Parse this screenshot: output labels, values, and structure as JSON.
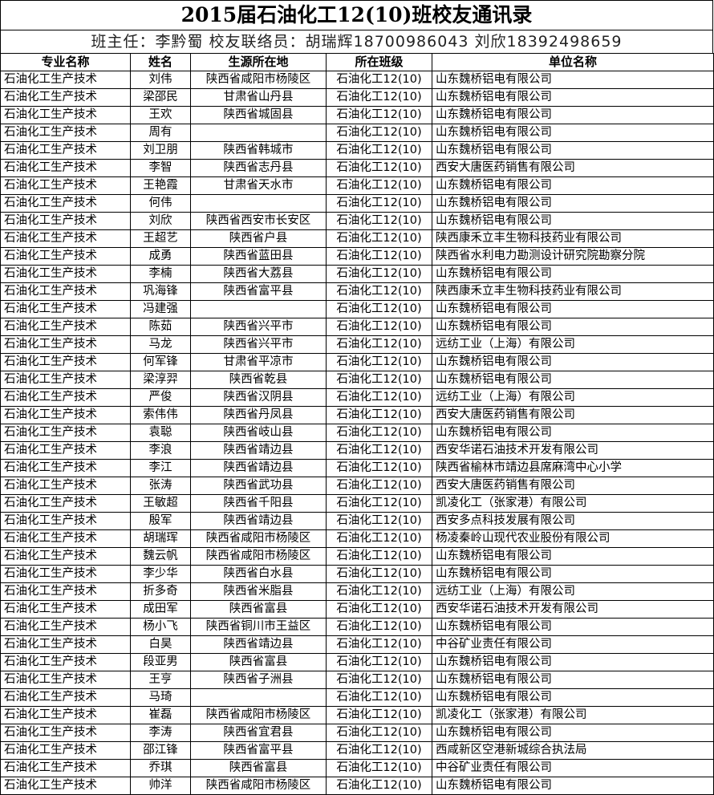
{
  "title": "2015届石油化工12(10)班校友通讯录",
  "subtitle": "班主任：李黔蜀 校友联络员：胡瑞辉18700986043 刘欣18392498659",
  "columns": [
    "专业名称",
    "姓名",
    "生源所在地",
    "所在班级",
    "单位名称"
  ],
  "rows": [
    [
      "石油化工生产技术",
      "刘伟",
      "陕西省咸阳市杨陵区",
      "石油化工12(10)",
      "山东魏桥铝电有限公司"
    ],
    [
      "石油化工生产技术",
      "梁邵民",
      "甘肃省山丹县",
      "石油化工12(10)",
      "山东魏桥铝电有限公司"
    ],
    [
      "石油化工生产技术",
      "王欢",
      "陕西省城固县",
      "石油化工12(10)",
      "山东魏桥铝电有限公司"
    ],
    [
      "石油化工生产技术",
      "周有",
      "",
      "石油化工12(10)",
      "山东魏桥铝电有限公司"
    ],
    [
      "石油化工生产技术",
      "刘卫朋",
      "陕西省韩城市",
      "石油化工12(10)",
      "山东魏桥铝电有限公司"
    ],
    [
      "石油化工生产技术",
      "李智",
      "陕西省志丹县",
      "石油化工12(10)",
      "西安大唐医药销售有限公司"
    ],
    [
      "石油化工生产技术",
      "王艳霞",
      "甘肃省天水市",
      "石油化工12(10)",
      "山东魏桥铝电有限公司"
    ],
    [
      "石油化工生产技术",
      "何伟",
      "",
      "石油化工12(10)",
      "山东魏桥铝电有限公司"
    ],
    [
      "石油化工生产技术",
      "刘欣",
      "陕西省西安市长安区",
      "石油化工12(10)",
      "山东魏桥铝电有限公司"
    ],
    [
      "石油化工生产技术",
      "王超艺",
      "陕西省户县",
      "石油化工12(10)",
      "陕西康禾立丰生物科技药业有限公司"
    ],
    [
      "石油化工生产技术",
      "成勇",
      "陕西省蓝田县",
      "石油化工12(10)",
      "陕西省水利电力勘测设计研究院勘察分院"
    ],
    [
      "石油化工生产技术",
      "李楠",
      "陕西省大荔县",
      "石油化工12(10)",
      "山东魏桥铝电有限公司"
    ],
    [
      "石油化工生产技术",
      "巩海锋",
      "陕西省富平县",
      "石油化工12(10)",
      "陕西康禾立丰生物科技药业有限公司"
    ],
    [
      "石油化工生产技术",
      "冯建强",
      "",
      "石油化工12(10)",
      "山东魏桥铝电有限公司"
    ],
    [
      "石油化工生产技术",
      "陈茹",
      "陕西省兴平市",
      "石油化工12(10)",
      "山东魏桥铝电有限公司"
    ],
    [
      "石油化工生产技术",
      "马龙",
      "陕西省兴平市",
      "石油化工12(10)",
      "远纺工业（上海）有限公司"
    ],
    [
      "石油化工生产技术",
      "何军锋",
      "甘肃省平凉市",
      "石油化工12(10)",
      "山东魏桥铝电有限公司"
    ],
    [
      "石油化工生产技术",
      "梁淳羿",
      "陕西省乾县",
      "石油化工12(10)",
      "山东魏桥铝电有限公司"
    ],
    [
      "石油化工生产技术",
      "严俊",
      "陕西省汉阴县",
      "石油化工12(10)",
      "远纺工业（上海）有限公司"
    ],
    [
      "石油化工生产技术",
      "索伟伟",
      "陕西省丹凤县",
      "石油化工12(10)",
      "西安大唐医药销售有限公司"
    ],
    [
      "石油化工生产技术",
      "袁聪",
      "陕西省岐山县",
      "石油化工12(10)",
      "山东魏桥铝电有限公司"
    ],
    [
      "石油化工生产技术",
      "李浪",
      "陕西省靖边县",
      "石油化工12(10)",
      "西安华诺石油技术开发有限公司"
    ],
    [
      "石油化工生产技术",
      "李江",
      "陕西省靖边县",
      "石油化工12(10)",
      "陕西省榆林市靖边县席麻湾中心小学"
    ],
    [
      "石油化工生产技术",
      "张涛",
      "陕西省武功县",
      "石油化工12(10)",
      "西安大唐医药销售有限公司"
    ],
    [
      "石油化工生产技术",
      "王敏超",
      "陕西省千阳县",
      "石油化工12(10)",
      "凯凌化工（张家港）有限公司"
    ],
    [
      "石油化工生产技术",
      "殷军",
      "陕西省靖边县",
      "石油化工12(10)",
      "西安多点科技发展有限公司"
    ],
    [
      "石油化工生产技术",
      "胡瑞珲",
      "陕西省咸阳市杨陵区",
      "石油化工12(10)",
      "杨凌秦岭山现代农业股份有限公司"
    ],
    [
      "石油化工生产技术",
      "魏云帆",
      "陕西省咸阳市杨陵区",
      "石油化工12(10)",
      "山东魏桥铝电有限公司"
    ],
    [
      "石油化工生产技术",
      "李少华",
      "陕西省白水县",
      "石油化工12(10)",
      "山东魏桥铝电有限公司"
    ],
    [
      "石油化工生产技术",
      "折多奇",
      "陕西省米脂县",
      "石油化工12(10)",
      "远纺工业（上海）有限公司"
    ],
    [
      "石油化工生产技术",
      "成田军",
      "陕西省富县",
      "石油化工12(10)",
      "西安华诺石油技术开发有限公司"
    ],
    [
      "石油化工生产技术",
      "杨小飞",
      "陕西省铜川市王益区",
      "石油化工12(10)",
      "山东魏桥铝电有限公司"
    ],
    [
      "石油化工生产技术",
      "白昊",
      "陕西省靖边县",
      "石油化工12(10)",
      "中谷矿业责任有限公司"
    ],
    [
      "石油化工生产技术",
      "段亚男",
      "陕西省富县",
      "石油化工12(10)",
      "山东魏桥铝电有限公司"
    ],
    [
      "石油化工生产技术",
      "王亨",
      "陕西省子洲县",
      "石油化工12(10)",
      "山东魏桥铝电有限公司"
    ],
    [
      "石油化工生产技术",
      "马琦",
      "",
      "石油化工12(10)",
      "山东魏桥铝电有限公司"
    ],
    [
      "石油化工生产技术",
      "崔磊",
      "陕西省咸阳市杨陵区",
      "石油化工12(10)",
      "凯凌化工（张家港）有限公司"
    ],
    [
      "石油化工生产技术",
      "李涛",
      "陕西省宜君县",
      "石油化工12(10)",
      "山东魏桥铝电有限公司"
    ],
    [
      "石油化工生产技术",
      "邵江锋",
      "陕西省富平县",
      "石油化工12(10)",
      "西咸新区空港新城综合执法局"
    ],
    [
      "石油化工生产技术",
      "乔琪",
      "陕西省富县",
      "石油化工12(10)",
      "中谷矿业责任有限公司"
    ],
    [
      "石油化工生产技术",
      "帅洋",
      "陕西省咸阳市杨陵区",
      "石油化工12(10)",
      "山东魏桥铝电有限公司"
    ]
  ]
}
